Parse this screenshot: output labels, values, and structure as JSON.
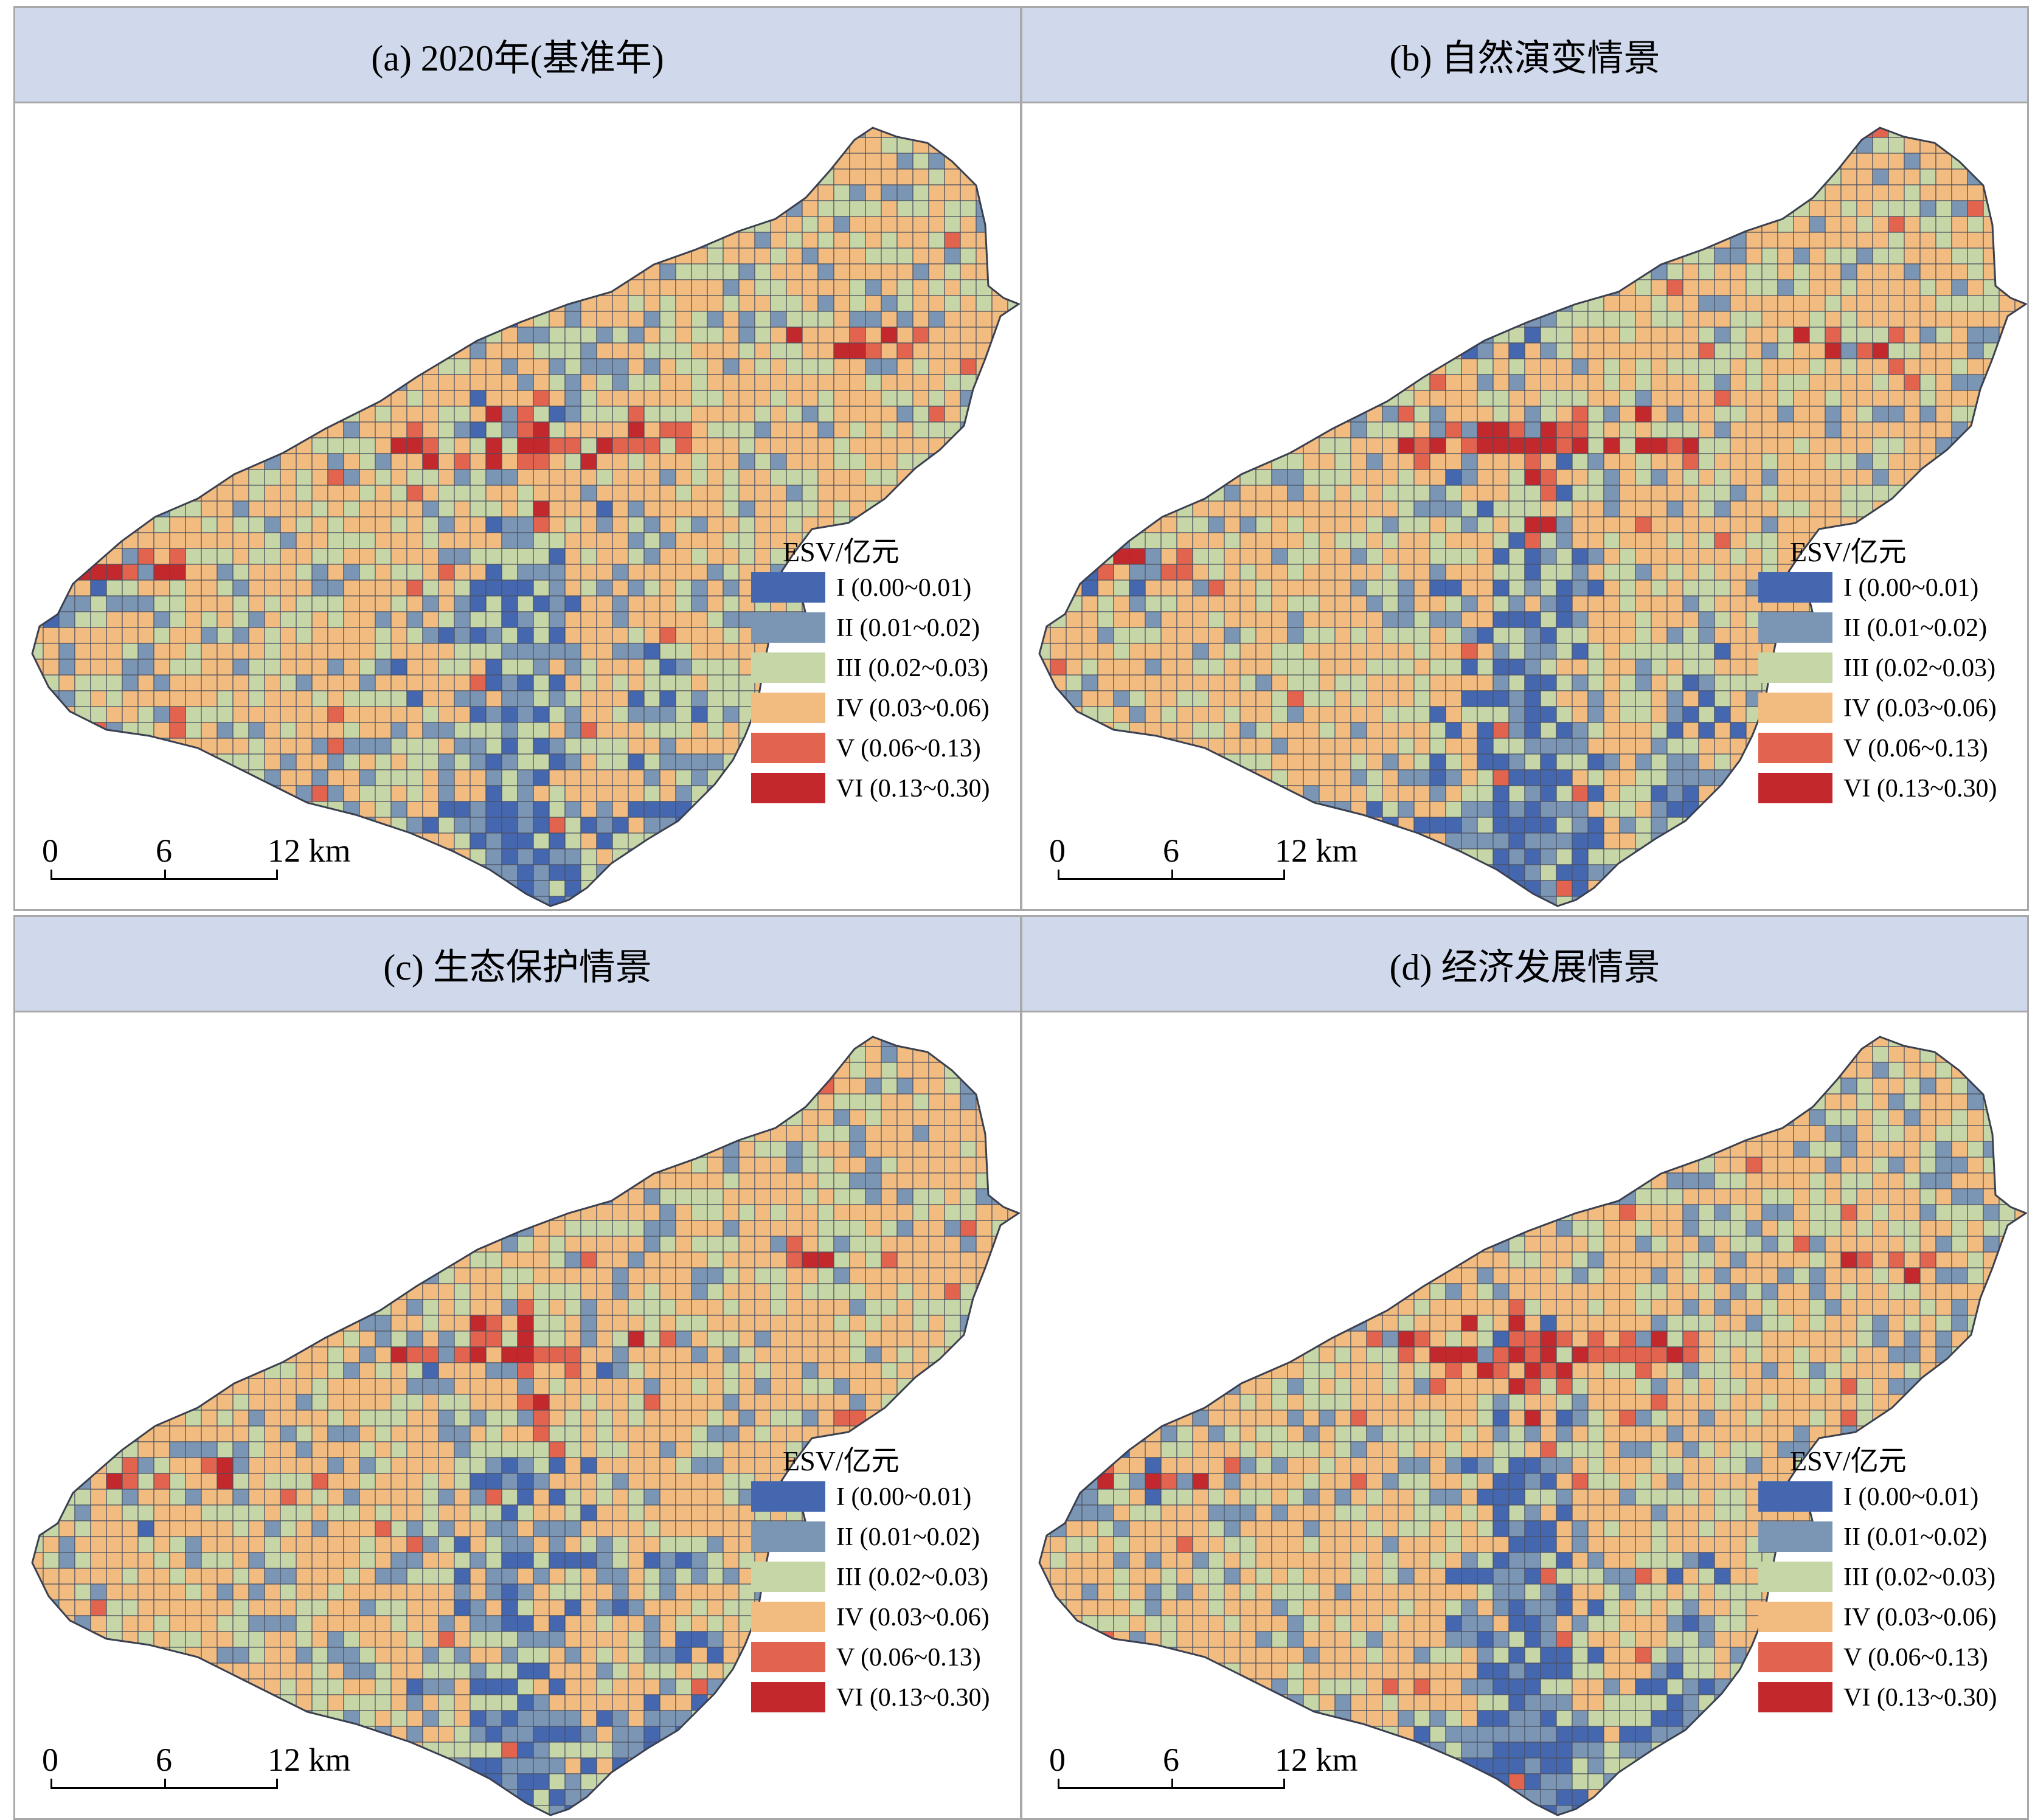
{
  "colors": {
    "I": "#4467b0",
    "II": "#7b96b5",
    "III": "#c6d6a6",
    "IV": "#f2bb7f",
    "V": "#e2644f",
    "VI": "#c3282d",
    "header_bg": "#d0d8ec",
    "grid_line": "#4a5060"
  },
  "legend": {
    "title": "ESV/亿元",
    "items": [
      {
        "class": "I",
        "label": "I (0.00~0.01)",
        "color": "#4467b0"
      },
      {
        "class": "II",
        "label": "II (0.01~0.02)",
        "color": "#7b96b5"
      },
      {
        "class": "III",
        "label": "III (0.02~0.03)",
        "color": "#c6d6a6"
      },
      {
        "class": "IV",
        "label": "IV (0.03~0.06)",
        "color": "#f2bb7f"
      },
      {
        "class": "V",
        "label": "V (0.06~0.13)",
        "color": "#e2644f"
      },
      {
        "class": "VI",
        "label": "VI (0.13~0.30)",
        "color": "#c3282d"
      }
    ]
  },
  "scalebar": {
    "labels": [
      "0",
      "6",
      "12 km"
    ]
  },
  "panels": [
    {
      "id": "a",
      "title": "(a) 2020年(基准年)",
      "map_seed": 11,
      "red_level": 1.0,
      "blue_level": 1.0
    },
    {
      "id": "b",
      "title": "(b) 自然演变情景",
      "map_seed": 23,
      "red_level": 1.15,
      "blue_level": 1.1
    },
    {
      "id": "c",
      "title": "(c) 生态保护情景",
      "map_seed": 37,
      "red_level": 0.9,
      "blue_level": 0.95
    },
    {
      "id": "d",
      "title": "(d) 经济发展情景",
      "map_seed": 53,
      "red_level": 1.3,
      "blue_level": 1.15
    }
  ]
}
